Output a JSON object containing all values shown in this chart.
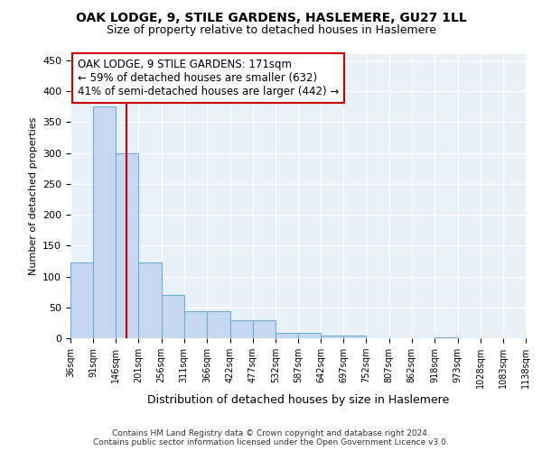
{
  "title": "OAK LODGE, 9, STILE GARDENS, HASLEMERE, GU27 1LL",
  "subtitle": "Size of property relative to detached houses in Haslemere",
  "xlabel": "Distribution of detached houses by size in Haslemere",
  "ylabel": "Number of detached properties",
  "footer_line1": "Contains HM Land Registry data © Crown copyright and database right 2024.",
  "footer_line2": "Contains public sector information licensed under the Open Government Licence v3.0.",
  "bin_edges": [
    36,
    91,
    146,
    201,
    256,
    311,
    366,
    422,
    477,
    532,
    587,
    642,
    697,
    752,
    807,
    862,
    918,
    973,
    1028,
    1083,
    1138
  ],
  "bar_heights": [
    122,
    375,
    300,
    122,
    70,
    44,
    44,
    29,
    29,
    9,
    9,
    5,
    5,
    0,
    0,
    0,
    1,
    0,
    0,
    0,
    2
  ],
  "bar_color": "#c6d9f0",
  "bar_edge_color": "#6baed6",
  "property_size": 171,
  "property_line_color": "#cc0000",
  "annotation_line1": "OAK LODGE, 9 STILE GARDENS: 171sqm",
  "annotation_line2": "← 59% of detached houses are smaller (632)",
  "annotation_line3": "41% of semi-detached houses are larger (442) →",
  "annotation_box_color": "#ffffff",
  "annotation_box_edge": "#cc0000",
  "ylim": [
    0,
    460
  ],
  "yticks": [
    0,
    50,
    100,
    150,
    200,
    250,
    300,
    350,
    400,
    450
  ],
  "bg_color": "#e8f0f8"
}
